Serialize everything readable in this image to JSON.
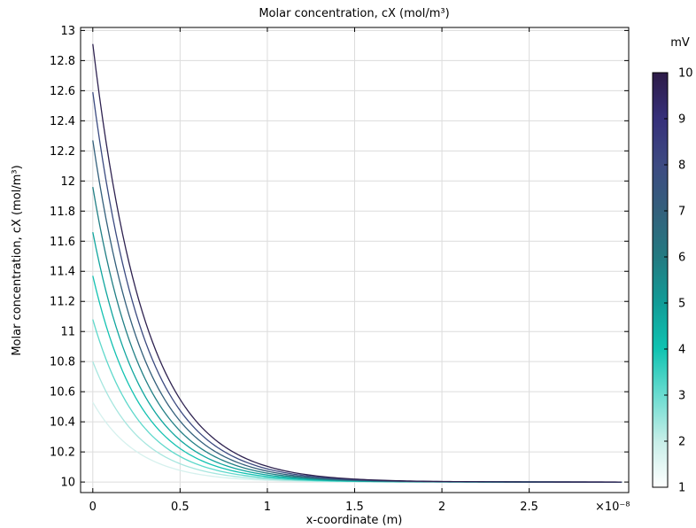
{
  "chart_data": {
    "type": "line",
    "title": "Molar concentration, cX (mol/m³)",
    "xlabel": "x-coordinate (m)",
    "ylabel": "Molar concentration, cX (mol/m³)",
    "x_multiplier": "×10⁻⁸",
    "xlim": [
      -0.07,
      3.07
    ],
    "ylim": [
      9.93,
      13.02
    ],
    "x_ticks": [
      0,
      0.5,
      1,
      1.5,
      2,
      2.5
    ],
    "x_tick_labels": [
      "0",
      "0.5",
      "1",
      "1.5",
      "2",
      "2.5"
    ],
    "y_ticks": [
      10,
      10.2,
      10.4,
      10.6,
      10.8,
      11,
      11.2,
      11.4,
      11.6,
      11.8,
      12,
      12.2,
      12.4,
      12.6,
      12.8,
      13
    ],
    "y_tick_labels": [
      "10",
      "10.2",
      "10.4",
      "10.6",
      "10.8",
      "11",
      "11.2",
      "11.4",
      "11.6",
      "11.8",
      "12",
      "12.2",
      "12.4",
      "12.6",
      "12.8",
      "13"
    ],
    "x_range": [
      0,
      3.03
    ],
    "grid": true,
    "curve_form": "10 + (y0 - 10) * exp(-x / decay)",
    "series": [
      {
        "param": 1,
        "y0": 10.53,
        "decay": 0.26,
        "color": "#d6f1ee"
      },
      {
        "param": 2,
        "y0": 10.8,
        "decay": 0.265,
        "color": "#a6e6df"
      },
      {
        "param": 3,
        "y0": 11.08,
        "decay": 0.27,
        "color": "#5ed8cb"
      },
      {
        "param": 4,
        "y0": 11.37,
        "decay": 0.275,
        "color": "#14c2b2"
      },
      {
        "param": 5,
        "y0": 11.66,
        "decay": 0.28,
        "color": "#10a59e"
      },
      {
        "param": 6,
        "y0": 11.96,
        "decay": 0.285,
        "color": "#227f85"
      },
      {
        "param": 7,
        "y0": 12.27,
        "decay": 0.29,
        "color": "#335f7b"
      },
      {
        "param": 8,
        "y0": 12.59,
        "decay": 0.295,
        "color": "#3b4a80"
      },
      {
        "param": 9,
        "y0": 12.91,
        "decay": 0.3,
        "color": "#2e2250"
      }
    ]
  },
  "colorbar": {
    "label": "mV",
    "min": 1,
    "max": 10,
    "ticks": [
      1,
      2,
      3,
      4,
      5,
      6,
      7,
      8,
      9,
      10
    ],
    "tick_labels": [
      "1",
      "2",
      "3",
      "4",
      "5",
      "6",
      "7",
      "8",
      "9",
      "10"
    ],
    "colors": [
      "#ffffff",
      "#c7eee8",
      "#6adcd0",
      "#10c3b1",
      "#119c97",
      "#237a81",
      "#34607c",
      "#3d4a82",
      "#36307a",
      "#2d1b47"
    ]
  }
}
